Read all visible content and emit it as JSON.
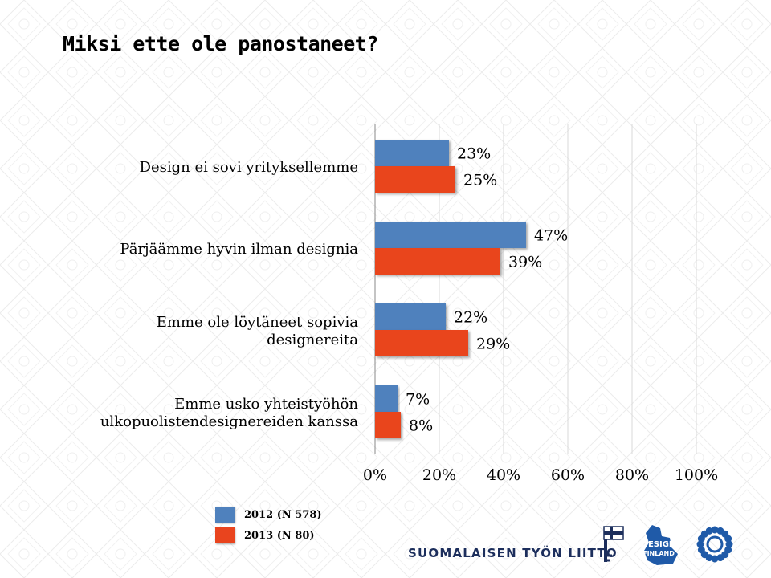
{
  "title": "Miksi ette ole panostaneet?",
  "chart_data": {
    "type": "bar",
    "orientation": "horizontal",
    "categories": [
      [
        "Design ei sovi yrityksellemme"
      ],
      [
        "Pärjäämme hyvin ilman designia"
      ],
      [
        "Emme ole löytäneet sopivia",
        "designereita"
      ],
      [
        "Emme usko yhteistyöhön",
        "ulkopuolistendesignereiden kanssa"
      ]
    ],
    "series": [
      {
        "name": "2012 (N 578)",
        "values": [
          23,
          47,
          22,
          7
        ],
        "labels": [
          "23%",
          "47%",
          "22%",
          "7%"
        ],
        "color": "#4f81bd"
      },
      {
        "name": "2013 (N 80)",
        "values": [
          25,
          39,
          29,
          8
        ],
        "labels": [
          "25%",
          "39%",
          "29%",
          "8%"
        ],
        "color": "#e9441e"
      }
    ],
    "xlim": [
      0,
      100
    ],
    "x_ticks": [
      0,
      20,
      40,
      60,
      80,
      100
    ],
    "x_tick_labels": [
      "0%",
      "20%",
      "40%",
      "60%",
      "80%",
      "100%"
    ],
    "grid": true,
    "legend_position": "bottom-left"
  },
  "footer": {
    "organization": "SUOMALAISEN TYÖN LIITTO",
    "logo_text": "DESIGN FINLAND",
    "logo_icons": [
      "key-flag-icon",
      "design-finland-map-icon",
      "rosette-icon"
    ]
  }
}
